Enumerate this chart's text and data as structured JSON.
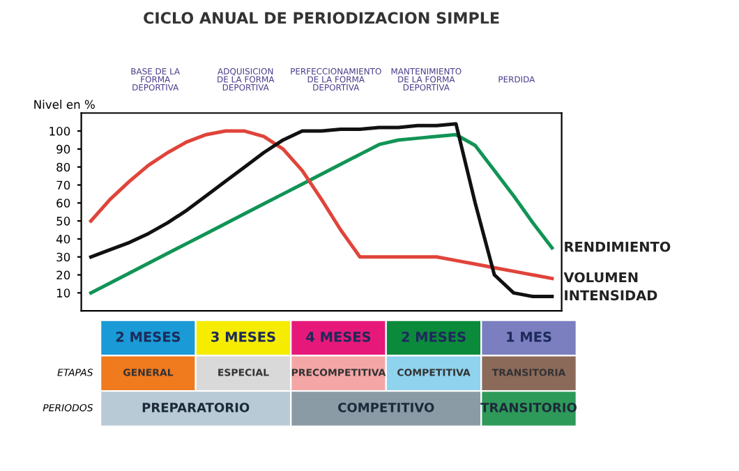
{
  "chart_data": {
    "type": "line",
    "title": "CICLO ANUAL DE PERIODIZACION SIMPLE",
    "ylabel": "Nivel en %",
    "categories": [
      null,
      null,
      null,
      null,
      null,
      null,
      null,
      null,
      null,
      null,
      null,
      null,
      null,
      null,
      null,
      null,
      null,
      null,
      null,
      null,
      null,
      null,
      null,
      null,
      null
    ],
    "series": [
      {
        "name": "RENDIMIENTO",
        "color": "#119455",
        "values": [
          10,
          15.5,
          21,
          26.5,
          32,
          37.5,
          43,
          48.5,
          54,
          59.5,
          65,
          70.5,
          76,
          81.5,
          87,
          92.5,
          95,
          96,
          97,
          98,
          92,
          78,
          64,
          49,
          35
        ]
      },
      {
        "name": "VOLUMEN",
        "color": "#e0443a",
        "values": [
          50,
          62,
          72,
          81,
          88,
          94,
          98,
          100,
          100,
          97,
          90,
          78,
          62,
          45,
          30,
          30,
          30,
          30,
          30,
          28,
          26,
          24,
          22,
          20,
          18
        ]
      },
      {
        "name": "INTENSIDAD",
        "color": "#111111",
        "values": [
          30,
          34,
          38,
          43,
          49,
          56,
          64,
          72,
          80,
          88,
          95,
          100,
          100,
          101,
          101,
          102,
          102,
          103,
          103,
          104,
          60,
          20,
          10,
          8,
          8
        ]
      }
    ],
    "ylim": [
      0,
      110
    ],
    "yticks": [
      10,
      20,
      30,
      40,
      50,
      60,
      70,
      80,
      90,
      100
    ],
    "tick_labels": "y",
    "grid": false,
    "legend": false,
    "marker": "none",
    "line_style": "solid",
    "annotations": [
      "BASE DE LA FORMA DEPORTIVA",
      "ADQUISICION DE LA FORMA DEPORTIVA",
      "PERFECCIONAMIENTO DE LA FORMA DEPORTIVA",
      "MANTENIMIENTO DE LA FORMA DEPORTIVA",
      "PERDIDA",
      "2 MESES",
      "3 MESES",
      "4 MESES",
      "2 MESES",
      "1 MES",
      "ETAPAS",
      "GENERAL",
      "ESPECIAL",
      "PRECOMPETITIVA",
      "COMPETITIVA",
      "TRANSITORIA",
      "PERIODOS",
      "PREPARATORIO",
      "COMPETITIVO",
      "TRANSITORIO"
    ]
  }
}
